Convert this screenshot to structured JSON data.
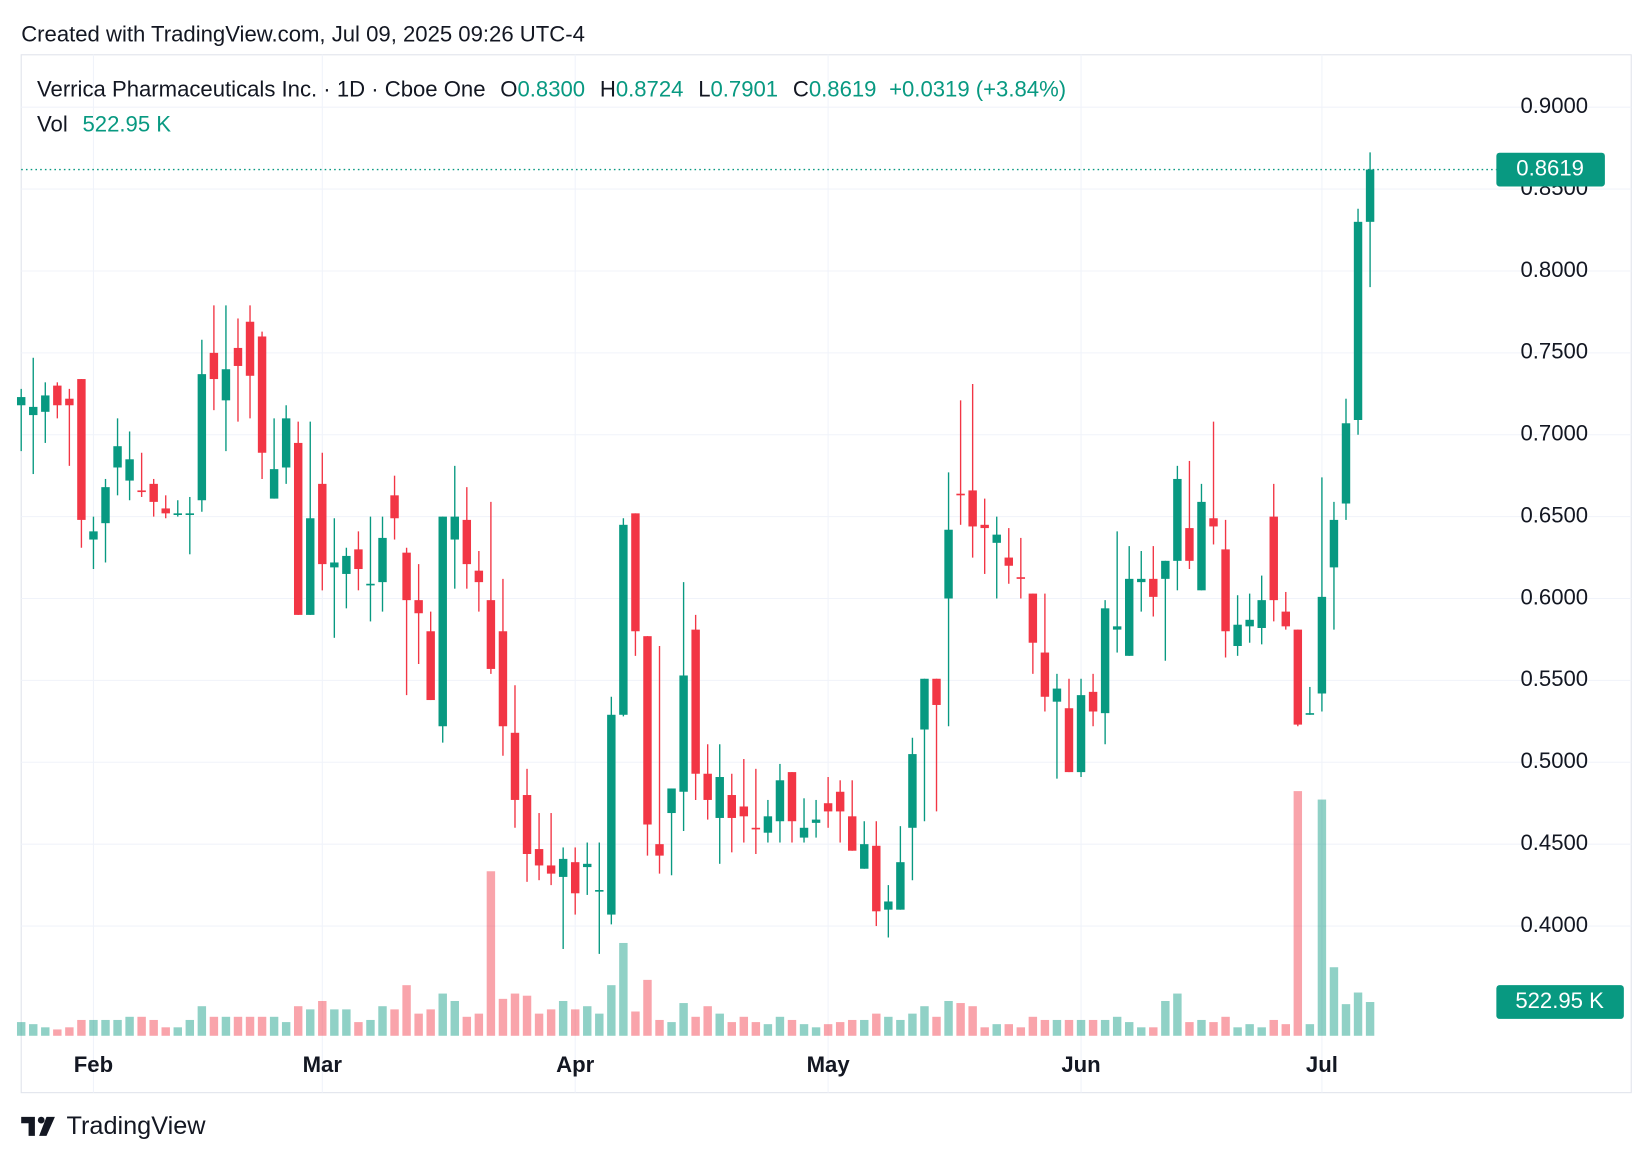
{
  "header": {
    "created": "Created with TradingView.com, Jul 09, 2025 09:26 UTC-4",
    "brand": "TradingView"
  },
  "chart_data": {
    "type": "candlestick",
    "title": "Verrica Pharmaceuticals Inc. · 1D · Cboe One",
    "ohlc_keys": [
      "O",
      "H",
      "L",
      "C"
    ],
    "ohlc_labels": [
      "0.8300",
      "0.8724",
      "0.7901",
      "0.8619"
    ],
    "change_label": "+0.0319 (+3.84%)",
    "volume_name": "Vol",
    "volume_label": "522.95 K",
    "last_price_label": "0.8619",
    "up_color": "#089981",
    "down_color": "#f23645",
    "volume_opacity": 0.45,
    "grid": true,
    "categories": [
      null,
      null,
      null,
      null,
      null,
      null,
      "Feb",
      null,
      null,
      null,
      null,
      null,
      null,
      null,
      null,
      null,
      null,
      null,
      null,
      null,
      null,
      null,
      null,
      null,
      null,
      "Mar",
      null,
      null,
      null,
      null,
      null,
      null,
      null,
      null,
      null,
      null,
      null,
      null,
      null,
      null,
      null,
      null,
      null,
      null,
      null,
      null,
      "Apr",
      null,
      null,
      null,
      null,
      null,
      null,
      null,
      null,
      null,
      null,
      null,
      null,
      null,
      null,
      null,
      null,
      null,
      null,
      null,
      null,
      "May",
      null,
      null,
      null,
      null,
      null,
      null,
      null,
      null,
      null,
      null,
      null,
      null,
      null,
      null,
      null,
      null,
      null,
      null,
      null,
      null,
      "Jun",
      null,
      null,
      null,
      null,
      null,
      null,
      null,
      null,
      null,
      null,
      null,
      null,
      null,
      null,
      null,
      null,
      null,
      null,
      null,
      "Jul",
      null,
      null,
      null,
      null
    ],
    "open": [
      0.718,
      0.712,
      0.714,
      0.73,
      0.722,
      0.734,
      0.636,
      0.646,
      0.68,
      0.672,
      0.666,
      0.67,
      0.655,
      0.651,
      0.651,
      0.66,
      0.75,
      0.721,
      0.753,
      0.769,
      0.76,
      0.661,
      0.68,
      0.695,
      0.59,
      0.67,
      0.619,
      0.615,
      0.63,
      0.608,
      0.61,
      0.663,
      0.628,
      0.599,
      0.58,
      0.522,
      0.636,
      0.648,
      0.617,
      0.599,
      0.58,
      0.518,
      0.48,
      0.447,
      0.437,
      0.43,
      0.439,
      0.436,
      0.421,
      0.407,
      0.529,
      0.652,
      0.577,
      0.45,
      0.469,
      0.482,
      0.581,
      0.493,
      0.466,
      0.48,
      0.473,
      0.46,
      0.457,
      0.464,
      0.494,
      0.454,
      0.463,
      0.475,
      0.482,
      0.467,
      0.435,
      0.449,
      0.41,
      0.41,
      0.46,
      0.52,
      0.551,
      0.6,
      0.664,
      0.666,
      0.645,
      0.634,
      0.625,
      0.613,
      0.603,
      0.567,
      0.537,
      0.533,
      0.494,
      0.543,
      0.53,
      0.581,
      0.565,
      0.61,
      0.612,
      0.612,
      0.623,
      0.643,
      0.605,
      0.649,
      0.63,
      0.571,
      0.583,
      0.582,
      0.65,
      0.592,
      0.581,
      0.529,
      0.542,
      0.619,
      0.658,
      0.709,
      0.83
    ],
    "high": [
      0.728,
      0.747,
      0.732,
      0.732,
      0.728,
      0.734,
      0.65,
      0.673,
      0.71,
      0.702,
      0.689,
      0.673,
      0.663,
      0.66,
      0.662,
      0.758,
      0.779,
      0.779,
      0.771,
      0.779,
      0.763,
      0.71,
      0.718,
      0.708,
      0.708,
      0.689,
      0.649,
      0.631,
      0.641,
      0.65,
      0.65,
      0.675,
      0.631,
      0.621,
      0.592,
      0.65,
      0.681,
      0.668,
      0.629,
      0.659,
      0.612,
      0.547,
      0.496,
      0.469,
      0.469,
      0.448,
      0.448,
      0.451,
      0.451,
      0.54,
      0.649,
      0.652,
      0.577,
      0.571,
      0.484,
      0.61,
      0.59,
      0.511,
      0.511,
      0.493,
      0.502,
      0.496,
      0.477,
      0.499,
      0.494,
      0.478,
      0.477,
      0.491,
      0.489,
      0.489,
      0.464,
      0.464,
      0.425,
      0.461,
      0.515,
      0.551,
      0.551,
      0.677,
      0.721,
      0.731,
      0.661,
      0.65,
      0.643,
      0.637,
      0.603,
      0.603,
      0.554,
      0.551,
      0.551,
      0.554,
      0.599,
      0.641,
      0.632,
      0.629,
      0.632,
      0.623,
      0.681,
      0.684,
      0.67,
      0.708,
      0.648,
      0.602,
      0.603,
      0.614,
      0.67,
      0.604,
      0.581,
      0.546,
      0.674,
      0.659,
      0.722,
      0.838,
      0.8724
    ],
    "low": [
      0.69,
      0.676,
      0.695,
      0.71,
      0.681,
      0.631,
      0.618,
      0.622,
      0.663,
      0.66,
      0.662,
      0.65,
      0.649,
      0.65,
      0.627,
      0.653,
      0.715,
      0.69,
      0.708,
      0.71,
      0.673,
      0.661,
      0.67,
      0.59,
      0.59,
      0.605,
      0.576,
      0.594,
      0.605,
      0.586,
      0.592,
      0.636,
      0.541,
      0.56,
      0.538,
      0.512,
      0.606,
      0.606,
      0.592,
      0.554,
      0.504,
      0.46,
      0.427,
      0.428,
      0.425,
      0.386,
      0.407,
      0.419,
      0.383,
      0.401,
      0.528,
      0.565,
      0.443,
      0.432,
      0.431,
      0.458,
      0.477,
      0.465,
      0.438,
      0.445,
      0.451,
      0.444,
      0.451,
      0.451,
      0.451,
      0.451,
      0.454,
      0.46,
      0.451,
      0.446,
      0.435,
      0.4,
      0.393,
      0.41,
      0.428,
      0.464,
      0.47,
      0.522,
      0.645,
      0.625,
      0.615,
      0.6,
      0.609,
      0.6,
      0.554,
      0.531,
      0.49,
      0.494,
      0.491,
      0.522,
      0.511,
      0.567,
      0.565,
      0.592,
      0.589,
      0.562,
      0.605,
      0.618,
      0.605,
      0.633,
      0.564,
      0.565,
      0.573,
      0.572,
      0.586,
      0.581,
      0.522,
      0.529,
      0.531,
      0.581,
      0.648,
      0.7,
      0.7901
    ],
    "close": [
      0.723,
      0.717,
      0.724,
      0.718,
      0.718,
      0.648,
      0.641,
      0.668,
      0.693,
      0.685,
      0.665,
      0.659,
      0.652,
      0.652,
      0.652,
      0.737,
      0.734,
      0.74,
      0.742,
      0.736,
      0.689,
      0.679,
      0.71,
      0.59,
      0.649,
      0.621,
      0.622,
      0.626,
      0.618,
      0.609,
      0.637,
      0.649,
      0.599,
      0.591,
      0.538,
      0.65,
      0.65,
      0.621,
      0.61,
      0.557,
      0.522,
      0.477,
      0.444,
      0.437,
      0.432,
      0.441,
      0.42,
      0.438,
      0.422,
      0.529,
      0.645,
      0.58,
      0.462,
      0.443,
      0.484,
      0.553,
      0.493,
      0.477,
      0.491,
      0.466,
      0.467,
      0.459,
      0.467,
      0.489,
      0.464,
      0.46,
      0.465,
      0.47,
      0.47,
      0.446,
      0.45,
      0.409,
      0.415,
      0.439,
      0.505,
      0.551,
      0.535,
      0.642,
      0.663,
      0.644,
      0.643,
      0.639,
      0.62,
      0.612,
      0.573,
      0.54,
      0.545,
      0.494,
      0.541,
      0.531,
      0.594,
      0.583,
      0.612,
      0.612,
      0.601,
      0.623,
      0.673,
      0.623,
      0.659,
      0.644,
      0.58,
      0.584,
      0.587,
      0.599,
      0.599,
      0.583,
      0.523,
      0.53,
      0.601,
      0.648,
      0.707,
      0.83,
      0.8619
    ],
    "volume": [
      212000,
      180000,
      131000,
      98000,
      131000,
      245000,
      245000,
      245000,
      245000,
      294000,
      294000,
      245000,
      131000,
      131000,
      245000,
      458000,
      294000,
      294000,
      294000,
      294000,
      294000,
      294000,
      212000,
      458000,
      409000,
      539000,
      409000,
      409000,
      212000,
      245000,
      458000,
      409000,
      784000,
      343000,
      409000,
      654000,
      539000,
      294000,
      343000,
      2549000,
      572000,
      654000,
      621000,
      343000,
      409000,
      539000,
      409000,
      458000,
      343000,
      784000,
      1438000,
      376000,
      866000,
      245000,
      212000,
      507000,
      294000,
      458000,
      343000,
      212000,
      294000,
      212000,
      180000,
      294000,
      245000,
      180000,
      131000,
      180000,
      212000,
      245000,
      245000,
      343000,
      294000,
      245000,
      343000,
      458000,
      294000,
      539000,
      507000,
      458000,
      131000,
      180000,
      180000,
      131000,
      294000,
      245000,
      245000,
      245000,
      245000,
      245000,
      245000,
      294000,
      212000,
      131000,
      131000,
      539000,
      654000,
      212000,
      245000,
      212000,
      294000,
      131000,
      180000,
      131000,
      245000,
      180000,
      3791000,
      180000,
      3660000,
      1062000,
      490000,
      670000,
      522950
    ],
    "ylim": [
      0.333,
      0.932
    ],
    "volume_ylim": [
      0,
      15200000
    ],
    "yticks": [
      {
        "value": 0.4,
        "label": "0.4000"
      },
      {
        "value": 0.45,
        "label": "0.4500"
      },
      {
        "value": 0.5,
        "label": "0.5000"
      },
      {
        "value": 0.55,
        "label": "0.5500"
      },
      {
        "value": 0.6,
        "label": "0.6000"
      },
      {
        "value": 0.65,
        "label": "0.6500"
      },
      {
        "value": 0.7,
        "label": "0.7000"
      },
      {
        "value": 0.75,
        "label": "0.7500"
      },
      {
        "value": 0.8,
        "label": "0.8000"
      },
      {
        "value": 0.85,
        "label": "0.8500"
      },
      {
        "value": 0.9,
        "label": "0.9000"
      }
    ]
  }
}
